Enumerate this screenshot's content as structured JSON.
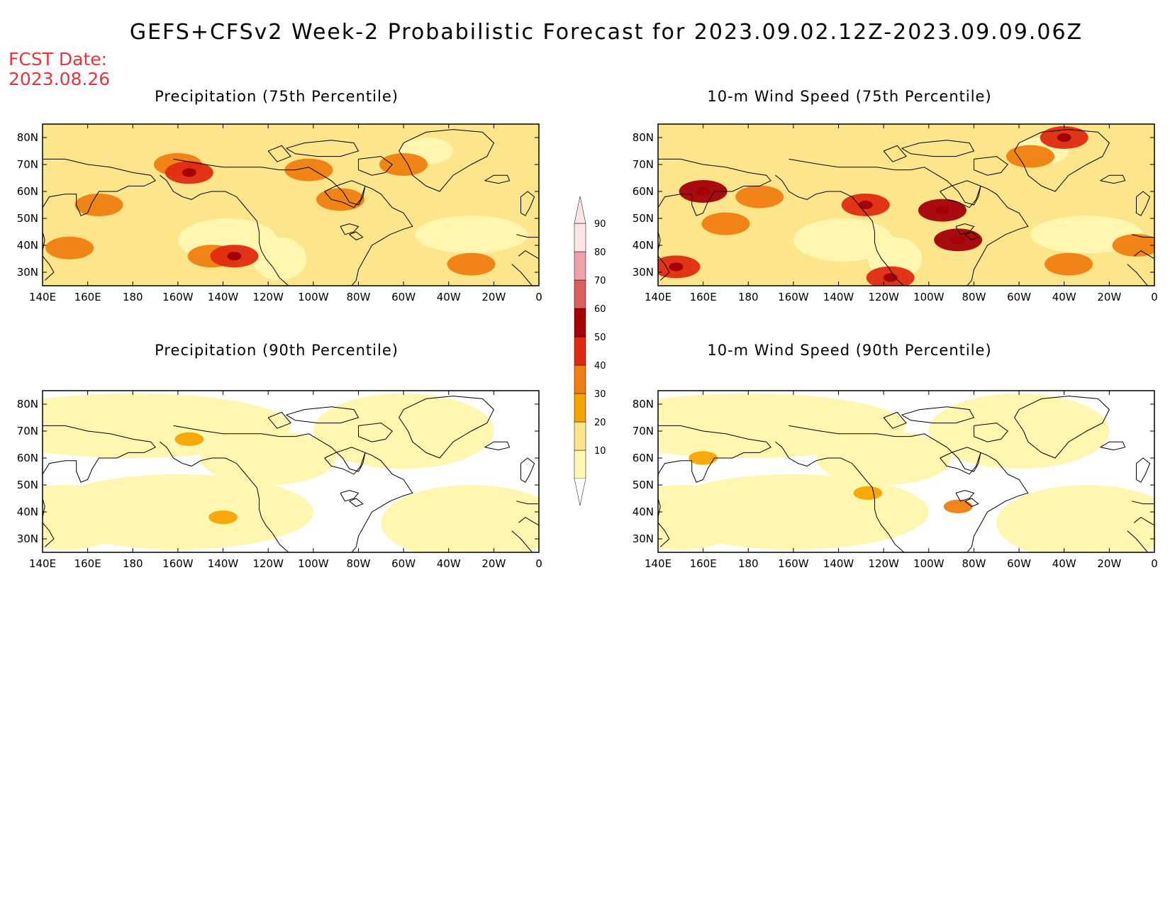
{
  "title": "GEFS+CFSv2 Week-2 Probabilistic Forecast for 2023.09.02.12Z-2023.09.09.06Z",
  "fcst_date": {
    "label": "FCST Date:",
    "value": "2023.08.26"
  },
  "axes": {
    "lat_labels": [
      "80N",
      "70N",
      "60N",
      "50N",
      "40N",
      "30N"
    ],
    "lat_values": [
      80,
      70,
      60,
      50,
      40,
      30
    ],
    "lat_range": [
      25,
      85
    ],
    "lon_labels": [
      "140E",
      "160E",
      "180",
      "160W",
      "140W",
      "120W",
      "100W",
      "80W",
      "60W",
      "40W",
      "20W",
      "0"
    ],
    "lon_values": [
      140,
      160,
      180,
      200,
      220,
      240,
      260,
      280,
      300,
      320,
      340,
      360
    ],
    "lon_range": [
      140,
      360
    ]
  },
  "colorbar": {
    "levels": [
      10,
      20,
      30,
      40,
      50,
      60,
      70,
      80,
      90
    ],
    "colors": [
      "#fff7b0",
      "#fde58c",
      "#f7a400",
      "#f07e10",
      "#e02a10",
      "#a40008",
      "#d86060",
      "#f0a0a8",
      "#fde4e6"
    ]
  },
  "panels": [
    {
      "title": "Precipitation (75th Percentile)",
      "position": "top-left",
      "intensity": "high",
      "features": [
        {
          "lon": 152,
          "lat": 39,
          "level": 3
        },
        {
          "lon": 165,
          "lat": 55,
          "level": 3
        },
        {
          "lon": 200,
          "lat": 70,
          "level": 3
        },
        {
          "lon": 205,
          "lat": 67,
          "level": 4
        },
        {
          "lon": 215,
          "lat": 36,
          "level": 3
        },
        {
          "lon": 225,
          "lat": 36,
          "level": 4
        },
        {
          "lon": 258,
          "lat": 68,
          "level": 3
        },
        {
          "lon": 272,
          "lat": 57,
          "level": 3
        },
        {
          "lon": 300,
          "lat": 70,
          "level": 3
        },
        {
          "lon": 330,
          "lat": 33,
          "level": 3
        }
      ]
    },
    {
      "title": "10-m Wind Speed (75th Percentile)",
      "position": "top-right",
      "intensity": "high",
      "features": [
        {
          "lon": 148,
          "lat": 32,
          "level": 4
        },
        {
          "lon": 170,
          "lat": 48,
          "level": 3
        },
        {
          "lon": 185,
          "lat": 58,
          "level": 3
        },
        {
          "lon": 160,
          "lat": 60,
          "level": 5
        },
        {
          "lon": 232,
          "lat": 55,
          "level": 4
        },
        {
          "lon": 243,
          "lat": 28,
          "level": 4
        },
        {
          "lon": 266,
          "lat": 53,
          "level": 5
        },
        {
          "lon": 273,
          "lat": 42,
          "level": 5
        },
        {
          "lon": 320,
          "lat": 80,
          "level": 4
        },
        {
          "lon": 305,
          "lat": 73,
          "level": 3
        },
        {
          "lon": 322,
          "lat": 33,
          "level": 3
        },
        {
          "lon": 352,
          "lat": 40,
          "level": 3
        }
      ]
    },
    {
      "title": "Precipitation (90th Percentile)",
      "position": "bottom-left",
      "intensity": "low",
      "features": [
        {
          "lon": 205,
          "lat": 67,
          "level": 2
        },
        {
          "lon": 220,
          "lat": 38,
          "level": 2
        }
      ]
    },
    {
      "title": "10-m Wind Speed (90th Percentile)",
      "position": "bottom-right",
      "intensity": "low",
      "features": [
        {
          "lon": 160,
          "lat": 60,
          "level": 2
        },
        {
          "lon": 233,
          "lat": 47,
          "level": 2
        },
        {
          "lon": 273,
          "lat": 42,
          "level": 3
        }
      ]
    }
  ]
}
